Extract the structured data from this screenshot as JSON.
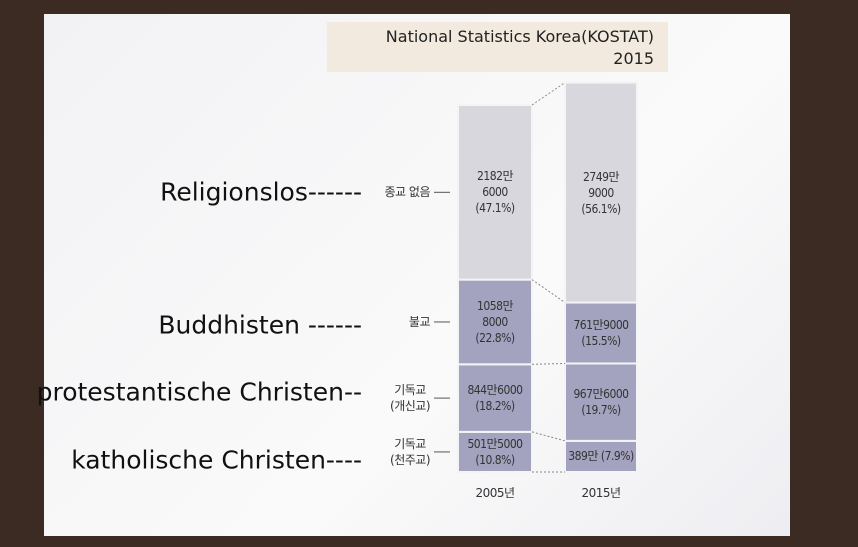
{
  "chart_data": {
    "type": "stacked_bar",
    "source": [
      "National Statistics Korea(KOSTAT)",
      "2015"
    ],
    "categories": [
      "2005년",
      "2015년"
    ],
    "series": [
      {
        "name": "종교 없음",
        "color": "#d8d7de",
        "values": [
          21826000,
          27499000
        ],
        "value_labels": [
          "2182만\n6000\n(47.1%)",
          "2749만\n9000\n(56.1%)"
        ]
      },
      {
        "name": "불교",
        "color": "#a4a3bf",
        "values": [
          10588000,
          7619000
        ],
        "value_labels": [
          "1058만\n8000\n(22.8%)",
          "761만9000\n(15.5%)"
        ]
      },
      {
        "name": "기독교\n(개신교)",
        "color": "#a4a3bf",
        "values": [
          8446000,
          9676000
        ],
        "value_labels": [
          "844만6000\n(18.2%)",
          "967만6000\n(19.7%)"
        ]
      },
      {
        "name": "기독교\n(천주교)",
        "color": "#a4a3bf",
        "values": [
          5015000,
          3890000
        ],
        "value_labels": [
          "501만5000\n(10.8%)",
          "389만 (7.9%)"
        ]
      }
    ],
    "annotations": [
      "Religionslos------",
      "Buddhisten ------",
      "protestantische Christen--",
      "katholische Christen----"
    ]
  }
}
